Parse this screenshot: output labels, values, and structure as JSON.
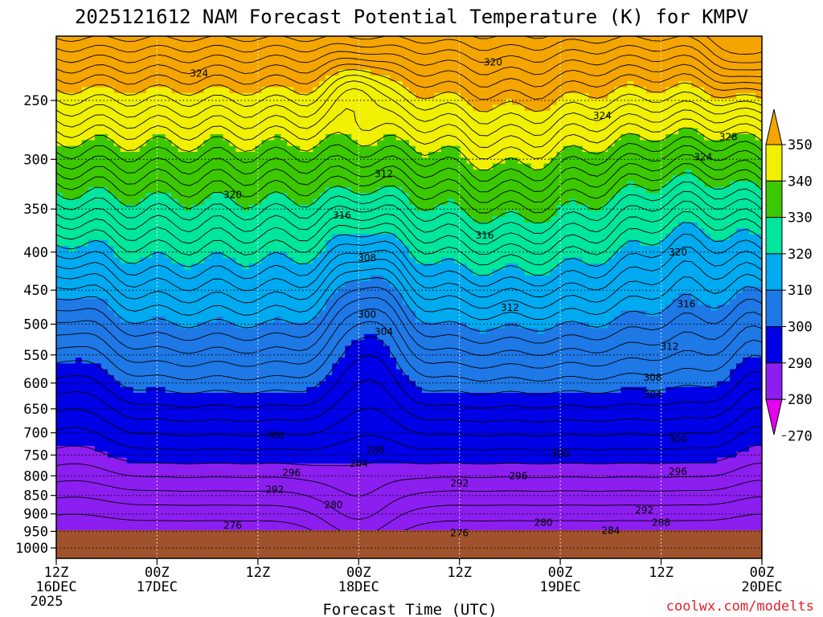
{
  "chart_data": {
    "type": "contour",
    "title": "2025121612 NAM Forecast Potential Temperature (K) for KMPV",
    "xlabel": "Forecast Time (UTC)",
    "ylabel": "",
    "credit": "coolwx.com/modelts",
    "y_axis": {
      "unit": "hPa",
      "reversed": true,
      "range": [
        1000,
        200
      ],
      "ticks": [
        "250",
        "300",
        "350",
        "400",
        "450",
        "500",
        "550",
        "600",
        "650",
        "700",
        "750",
        "800",
        "850",
        "900",
        "950",
        "1000"
      ],
      "tick_values": [
        250,
        300,
        350,
        400,
        450,
        500,
        550,
        600,
        650,
        700,
        750,
        800,
        850,
        900,
        950,
        1000
      ]
    },
    "x_axis": {
      "unit": "hours",
      "range": [
        0,
        84
      ],
      "tick_hours": [
        0,
        12,
        24,
        36,
        48,
        60,
        72,
        84
      ],
      "tick_line1": [
        "12Z",
        "00Z",
        "12Z",
        "00Z",
        "12Z",
        "00Z",
        "12Z",
        "00Z"
      ],
      "tick_line2": [
        "16DEC",
        "17DEC",
        "",
        "18DEC",
        "",
        "19DEC",
        "",
        "20DEC"
      ],
      "tick_line3": [
        "2025",
        "",
        "",
        "",
        "",
        "",
        "",
        ""
      ]
    },
    "colorbar": {
      "labels": [
        "350",
        "340",
        "330",
        "320",
        "310",
        "300",
        "290",
        "280",
        "270"
      ],
      "levels": [
        350,
        340,
        330,
        320,
        310,
        300,
        290,
        280,
        270
      ],
      "bands": [
        {
          "from": 340,
          "to": 350,
          "color": "#f5a500"
        },
        {
          "from": 330,
          "to": 340,
          "color": "#f0f000"
        },
        {
          "from": 320,
          "to": 330,
          "color": "#3cc800"
        },
        {
          "from": 310,
          "to": 320,
          "color": "#00e69c"
        },
        {
          "from": 300,
          "to": 310,
          "color": "#00aaf0"
        },
        {
          "from": 290,
          "to": 300,
          "color": "#1e78e6"
        },
        {
          "from": 280,
          "to": 290,
          "color": "#0000e6"
        },
        {
          "from": 270,
          "to": 280,
          "color": "#8c1ef0"
        },
        {
          "from": 260,
          "to": 270,
          "color": "#e600f0"
        }
      ]
    },
    "ground_color": "#a0522d",
    "contour_interval_K": 2,
    "contour_labels": [
      {
        "text": "324",
        "hour": 17,
        "hpa": 230
      },
      {
        "text": "320",
        "hour": 52,
        "hpa": 222
      },
      {
        "text": "324",
        "hour": 65,
        "hpa": 262
      },
      {
        "text": "328",
        "hour": 80,
        "hpa": 280
      },
      {
        "text": "324",
        "hour": 77,
        "hpa": 298
      },
      {
        "text": "320",
        "hour": 21,
        "hpa": 335
      },
      {
        "text": "312",
        "hour": 39,
        "hpa": 314
      },
      {
        "text": "316",
        "hour": 34,
        "hpa": 357
      },
      {
        "text": "316",
        "hour": 51,
        "hpa": 380
      },
      {
        "text": "320",
        "hour": 74,
        "hpa": 400
      },
      {
        "text": "308",
        "hour": 37,
        "hpa": 407
      },
      {
        "text": "316",
        "hour": 75,
        "hpa": 470
      },
      {
        "text": "312",
        "hour": 54,
        "hpa": 475
      },
      {
        "text": "300",
        "hour": 37,
        "hpa": 485
      },
      {
        "text": "304",
        "hour": 39,
        "hpa": 512
      },
      {
        "text": "312",
        "hour": 73,
        "hpa": 536
      },
      {
        "text": "308",
        "hour": 71,
        "hpa": 590
      },
      {
        "text": "304",
        "hour": 71,
        "hpa": 622
      },
      {
        "text": "300",
        "hour": 26,
        "hpa": 706
      },
      {
        "text": "300",
        "hour": 60,
        "hpa": 747
      },
      {
        "text": "300",
        "hour": 74,
        "hpa": 714
      },
      {
        "text": "288",
        "hour": 38,
        "hpa": 738
      },
      {
        "text": "284",
        "hour": 36,
        "hpa": 770
      },
      {
        "text": "296",
        "hour": 28,
        "hpa": 792
      },
      {
        "text": "296",
        "hour": 55,
        "hpa": 800
      },
      {
        "text": "296",
        "hour": 74,
        "hpa": 789
      },
      {
        "text": "292",
        "hour": 26,
        "hpa": 835
      },
      {
        "text": "292",
        "hour": 48,
        "hpa": 818
      },
      {
        "text": "292",
        "hour": 70,
        "hpa": 890
      },
      {
        "text": "280",
        "hour": 33,
        "hpa": 875
      },
      {
        "text": "288",
        "hour": 72,
        "hpa": 925
      },
      {
        "text": "276",
        "hour": 21,
        "hpa": 933
      },
      {
        "text": "280",
        "hour": 58,
        "hpa": 925
      },
      {
        "text": "284",
        "hour": 66,
        "hpa": 948
      },
      {
        "text": "276",
        "hour": 48,
        "hpa": 955
      }
    ]
  }
}
